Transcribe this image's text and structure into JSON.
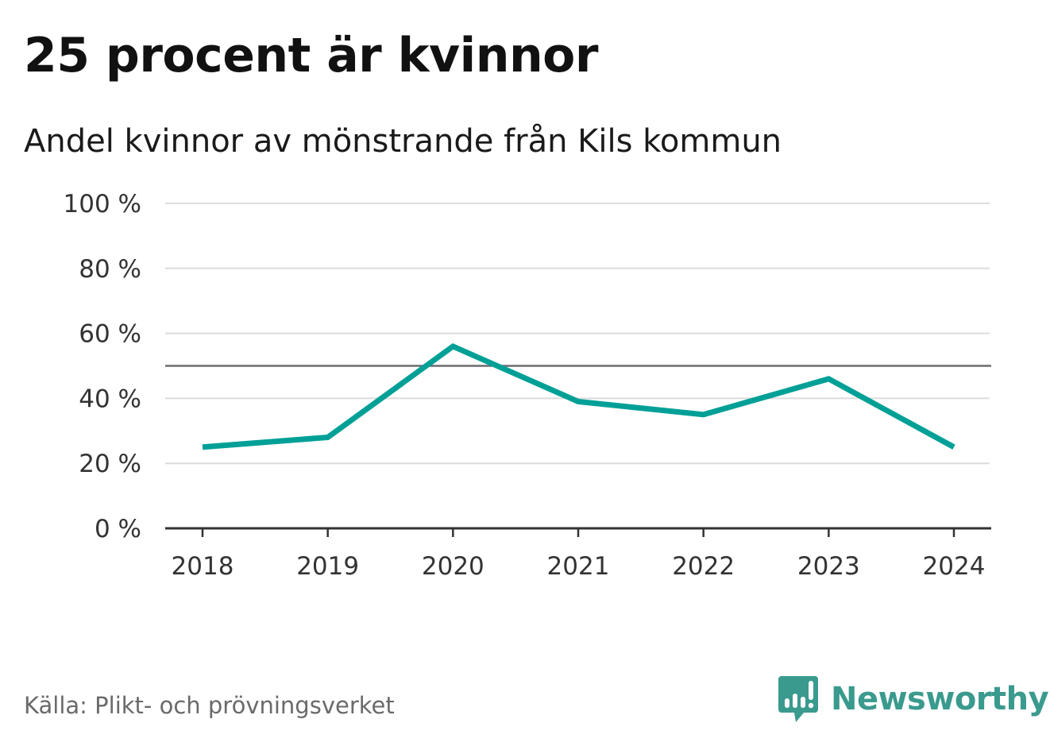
{
  "title": "25 procent är kvinnor",
  "subtitle": "Andel kvinnor av mönstrande från Kils kommun",
  "source": "Källa: Plikt- och prövningsverket",
  "brand": {
    "name": "Newsworthy",
    "logo_icon": "newsworthy-bar-chart-icon",
    "color": "#3a9a8e"
  },
  "chart_data": {
    "type": "line",
    "categories": [
      "2018",
      "2019",
      "2020",
      "2021",
      "2022",
      "2023",
      "2024"
    ],
    "series": [
      {
        "values": [
          25,
          28,
          56,
          39,
          35,
          46,
          25
        ],
        "color": "#00a097"
      }
    ],
    "reference_line": 50,
    "ylim": [
      0,
      100
    ],
    "yticks": [
      0,
      20,
      40,
      60,
      80,
      100
    ],
    "ytick_labels": [
      "0 %",
      "20 %",
      "40 %",
      "60 %",
      "80 %",
      "100 %"
    ],
    "grid": true,
    "legend": "none",
    "xlabel": "",
    "ylabel": ""
  }
}
